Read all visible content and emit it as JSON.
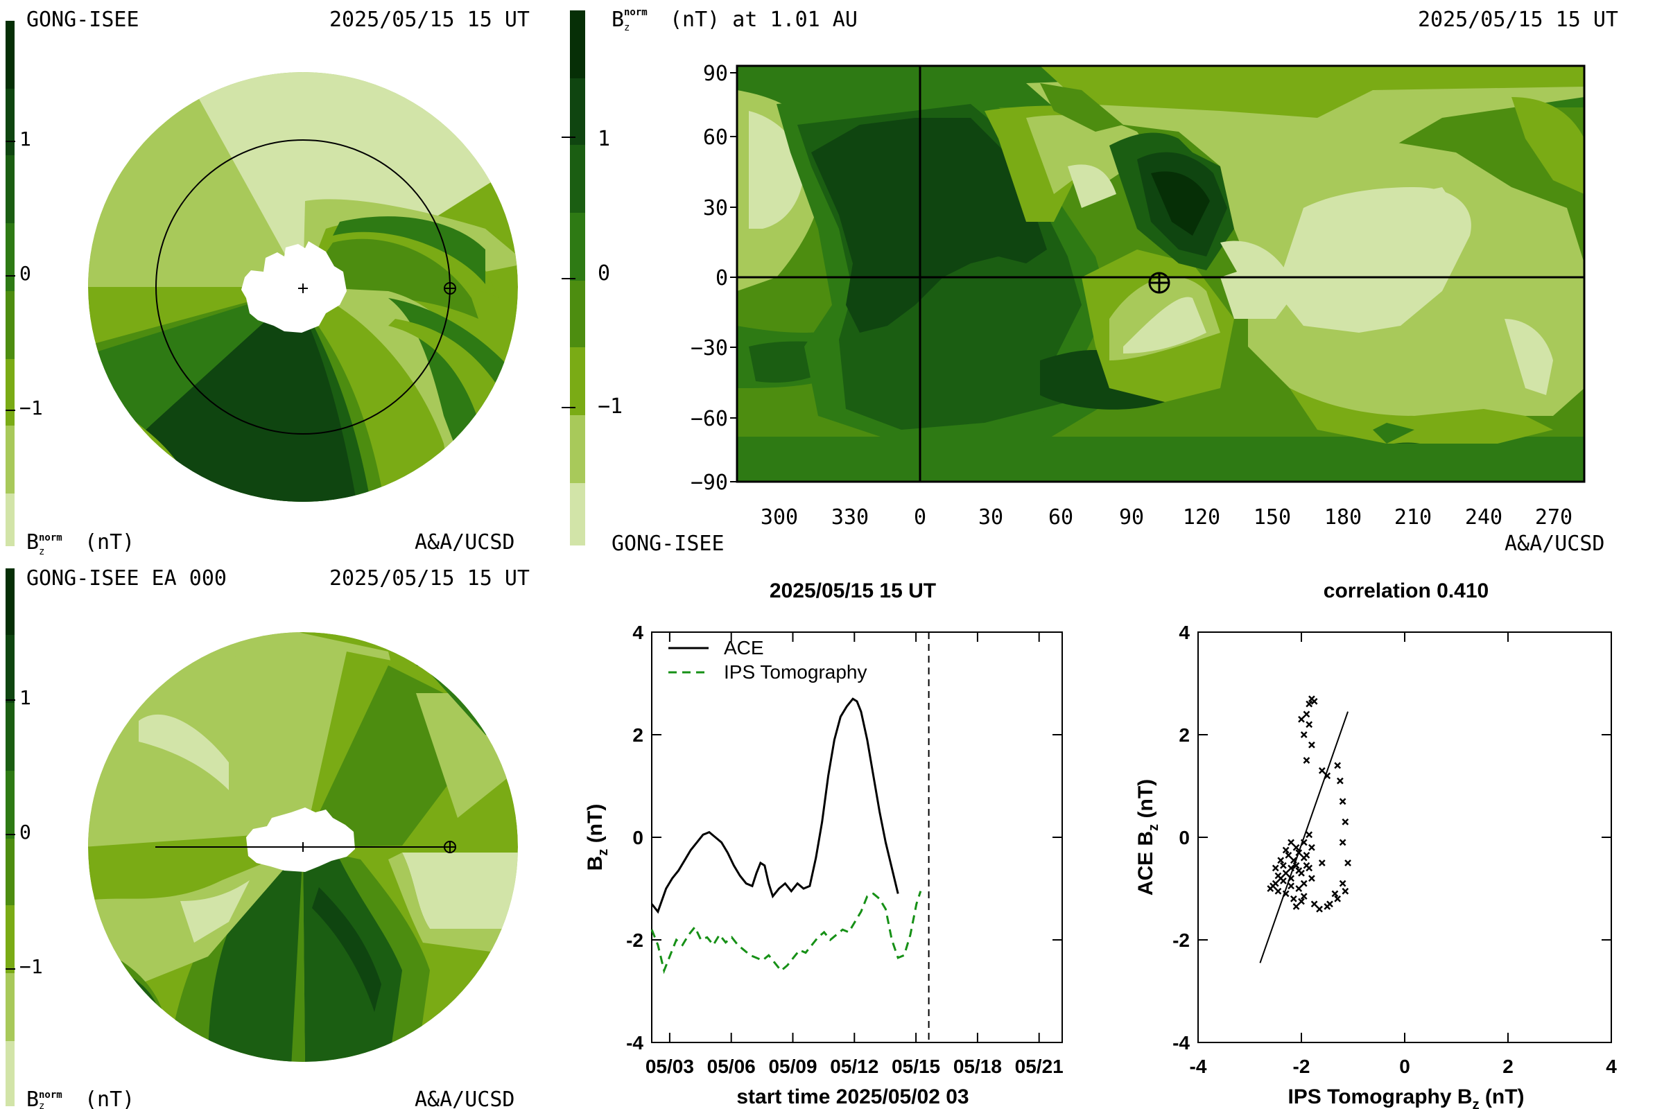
{
  "colors": {
    "levels": [
      "#d2e4a8",
      "#a8c95a",
      "#7aab15",
      "#4d8d10",
      "#2e7a14",
      "#1b5e12",
      "#0f4510",
      "#062f06"
    ],
    "ace": "#000000",
    "ips": "#169016",
    "disk_white": "#ffffff"
  },
  "top_left": {
    "label_left": "GONG-ISEE",
    "date": "2025/05/15 15 UT",
    "colorbar_ticks": [
      "1",
      "0",
      "−1"
    ],
    "unit_label": "(nT)",
    "credit": "A&A/UCSD",
    "icons": [
      "earth-symbol-icon",
      "sun-center-cross-icon"
    ]
  },
  "bottom_left": {
    "label_left": "GONG-ISEE EA 000",
    "date": "2025/05/15 15 UT",
    "colorbar_ticks": [
      "1",
      "0",
      "−1"
    ],
    "unit_label": "(nT)",
    "credit": "A&A/UCSD",
    "icons": [
      "earth-symbol-icon",
      "sun-center-cross-icon"
    ]
  },
  "top_right": {
    "title_tail": "(nT) at 1.01 AU",
    "date": "2025/05/15 15 UT",
    "colorbar_ticks": [
      "1",
      "0",
      "−1"
    ],
    "y_ticks": [
      "90",
      "60",
      "30",
      "0",
      "−30",
      "−60",
      "−90"
    ],
    "x_ticks": [
      "300",
      "330",
      "0",
      "30",
      "60",
      "90",
      "120",
      "150",
      "180",
      "210",
      "240",
      "270"
    ],
    "label_left": "GONG-ISEE",
    "credit": "A&A/UCSD",
    "icons": [
      "earth-symbol-icon"
    ]
  },
  "chart_data": [
    {
      "type": "line",
      "title": "2025/05/15 15 UT",
      "xlabel": "start time 2025/05/02 03",
      "ylabel_main": "B",
      "ylabel_sub": "z",
      "ylabel_tail": " (nT)",
      "x_ticks": [
        "05/03",
        "05/06",
        "05/09",
        "05/12",
        "05/15",
        "05/18",
        "05/21"
      ],
      "x_tick_days": [
        0.875,
        3.875,
        6.875,
        9.875,
        12.875,
        15.875,
        18.875
      ],
      "xlim_days": [
        0,
        20
      ],
      "ylim": [
        -4,
        4
      ],
      "y_ticks": [
        "4",
        "2",
        "0",
        "-2",
        "-4"
      ],
      "y_tick_values": [
        4,
        2,
        0,
        -2,
        -4
      ],
      "now_marker_days": 13.5,
      "legend": [
        "ACE",
        "IPS Tomography"
      ],
      "series": [
        {
          "name": "ACE",
          "style": "solid",
          "points": [
            [
              0,
              -1.3
            ],
            [
              0.3,
              -1.45
            ],
            [
              0.7,
              -1.0
            ],
            [
              1.0,
              -0.8
            ],
            [
              1.3,
              -0.65
            ],
            [
              1.6,
              -0.45
            ],
            [
              1.9,
              -0.25
            ],
            [
              2.2,
              -0.1
            ],
            [
              2.5,
              0.05
            ],
            [
              2.8,
              0.1
            ],
            [
              3.1,
              0.0
            ],
            [
              3.4,
              -0.1
            ],
            [
              3.7,
              -0.3
            ],
            [
              4.0,
              -0.55
            ],
            [
              4.3,
              -0.75
            ],
            [
              4.6,
              -0.9
            ],
            [
              4.9,
              -0.95
            ],
            [
              5.1,
              -0.7
            ],
            [
              5.3,
              -0.5
            ],
            [
              5.5,
              -0.55
            ],
            [
              5.7,
              -0.9
            ],
            [
              5.9,
              -1.15
            ],
            [
              6.2,
              -1.0
            ],
            [
              6.5,
              -0.9
            ],
            [
              6.8,
              -1.05
            ],
            [
              7.1,
              -0.9
            ],
            [
              7.4,
              -1.0
            ],
            [
              7.7,
              -0.95
            ],
            [
              8.0,
              -0.4
            ],
            [
              8.3,
              0.3
            ],
            [
              8.6,
              1.2
            ],
            [
              8.9,
              1.9
            ],
            [
              9.2,
              2.35
            ],
            [
              9.5,
              2.55
            ],
            [
              9.8,
              2.7
            ],
            [
              10.0,
              2.65
            ],
            [
              10.2,
              2.45
            ],
            [
              10.5,
              1.9
            ],
            [
              10.8,
              1.2
            ],
            [
              11.1,
              0.5
            ],
            [
              11.4,
              -0.1
            ],
            [
              11.7,
              -0.6
            ],
            [
              12.0,
              -1.1
            ]
          ]
        },
        {
          "name": "IPS Tomography",
          "style": "dashed",
          "points": [
            [
              0,
              -1.8
            ],
            [
              0.3,
              -2.1
            ],
            [
              0.6,
              -2.6
            ],
            [
              0.9,
              -2.3
            ],
            [
              1.2,
              -2.0
            ],
            [
              1.5,
              -2.1
            ],
            [
              1.8,
              -1.9
            ],
            [
              2.1,
              -1.75
            ],
            [
              2.4,
              -2.0
            ],
            [
              2.7,
              -1.95
            ],
            [
              3.0,
              -2.1
            ],
            [
              3.3,
              -1.9
            ],
            [
              3.6,
              -2.05
            ],
            [
              3.9,
              -1.95
            ],
            [
              4.2,
              -2.1
            ],
            [
              4.5,
              -2.2
            ],
            [
              4.8,
              -2.3
            ],
            [
              5.1,
              -2.35
            ],
            [
              5.4,
              -2.4
            ],
            [
              5.7,
              -2.3
            ],
            [
              6.0,
              -2.45
            ],
            [
              6.3,
              -2.6
            ],
            [
              6.6,
              -2.5
            ],
            [
              6.9,
              -2.35
            ],
            [
              7.2,
              -2.2
            ],
            [
              7.5,
              -2.25
            ],
            [
              7.8,
              -2.1
            ],
            [
              8.1,
              -1.95
            ],
            [
              8.4,
              -1.85
            ],
            [
              8.7,
              -2.0
            ],
            [
              9.0,
              -1.9
            ],
            [
              9.3,
              -1.8
            ],
            [
              9.6,
              -1.85
            ],
            [
              9.9,
              -1.65
            ],
            [
              10.2,
              -1.45
            ],
            [
              10.5,
              -1.15
            ],
            [
              10.8,
              -1.1
            ],
            [
              11.1,
              -1.2
            ],
            [
              11.4,
              -1.4
            ],
            [
              11.7,
              -2.0
            ],
            [
              12.0,
              -2.35
            ],
            [
              12.3,
              -2.3
            ],
            [
              12.6,
              -1.9
            ],
            [
              12.9,
              -1.3
            ],
            [
              13.1,
              -1.05
            ]
          ]
        }
      ]
    },
    {
      "type": "scatter",
      "title": "correlation 0.410",
      "xlabel_main": "IPS Tomography B",
      "xlabel_sub": "z",
      "xlabel_tail": " (nT)",
      "ylabel_main": "ACE B",
      "ylabel_sub": "z",
      "ylabel_tail": " (nT)",
      "xlim": [
        -4,
        4
      ],
      "ylim": [
        -4,
        4
      ],
      "x_ticks": [
        "-4",
        "-2",
        "0",
        "2",
        "4"
      ],
      "x_tick_values": [
        -4,
        -2,
        0,
        2,
        4
      ],
      "y_ticks": [
        "4",
        "2",
        "0",
        "-2",
        "-4"
      ],
      "y_tick_values": [
        4,
        2,
        0,
        -2,
        -4
      ],
      "fit_line": [
        [
          -2.8,
          -2.45
        ],
        [
          -1.1,
          2.45
        ]
      ],
      "points": [
        [
          -1.85,
          2.6
        ],
        [
          -1.8,
          2.7
        ],
        [
          -1.75,
          2.65
        ],
        [
          -1.9,
          2.4
        ],
        [
          -1.85,
          2.2
        ],
        [
          -2.0,
          2.3
        ],
        [
          -1.95,
          2.0
        ],
        [
          -1.8,
          1.8
        ],
        [
          -1.9,
          1.5
        ],
        [
          -1.6,
          1.3
        ],
        [
          -1.5,
          1.2
        ],
        [
          -1.3,
          1.4
        ],
        [
          -1.25,
          1.1
        ],
        [
          -1.2,
          0.7
        ],
        [
          -1.15,
          0.3
        ],
        [
          -1.2,
          -0.1
        ],
        [
          -1.1,
          -0.5
        ],
        [
          -1.2,
          -0.9
        ],
        [
          -1.3,
          -1.2
        ],
        [
          -1.5,
          -1.35
        ],
        [
          -1.75,
          -1.3
        ],
        [
          -1.95,
          -1.15
        ],
        [
          -1.8,
          -0.8
        ],
        [
          -1.6,
          -0.5
        ],
        [
          -1.8,
          -0.2
        ],
        [
          -1.85,
          0.05
        ],
        [
          -1.95,
          -0.1
        ],
        [
          -2.05,
          -0.3
        ],
        [
          -2.15,
          -0.45
        ],
        [
          -2.2,
          -0.6
        ],
        [
          -2.3,
          -0.7
        ],
        [
          -2.4,
          -0.8
        ],
        [
          -2.5,
          -0.9
        ],
        [
          -2.55,
          -0.95
        ],
        [
          -2.6,
          -1.0
        ],
        [
          -2.45,
          -1.05
        ],
        [
          -2.3,
          -1.1
        ],
        [
          -2.15,
          -1.2
        ],
        [
          -2.05,
          -1.0
        ],
        [
          -1.95,
          -0.9
        ],
        [
          -2.0,
          -0.7
        ],
        [
          -2.1,
          -0.55
        ],
        [
          -2.25,
          -0.35
        ],
        [
          -2.35,
          -0.55
        ],
        [
          -2.4,
          -0.45
        ],
        [
          -2.5,
          -0.6
        ],
        [
          -2.2,
          -0.8
        ],
        [
          -2.05,
          -0.65
        ],
        [
          -1.9,
          -0.55
        ],
        [
          -1.95,
          -0.4
        ],
        [
          -2.1,
          -0.2
        ],
        [
          -2.2,
          -0.1
        ],
        [
          -2.3,
          -0.25
        ],
        [
          -2.35,
          -0.85
        ],
        [
          -2.45,
          -0.75
        ],
        [
          -2.2,
          -0.95
        ],
        [
          -2.0,
          -1.25
        ],
        [
          -2.1,
          -1.35
        ],
        [
          -1.15,
          -1.05
        ],
        [
          -1.35,
          -1.1
        ],
        [
          -1.45,
          -1.3
        ],
        [
          -1.65,
          -1.4
        ],
        [
          -1.9,
          -0.35
        ],
        [
          -1.85,
          -0.6
        ]
      ]
    }
  ]
}
